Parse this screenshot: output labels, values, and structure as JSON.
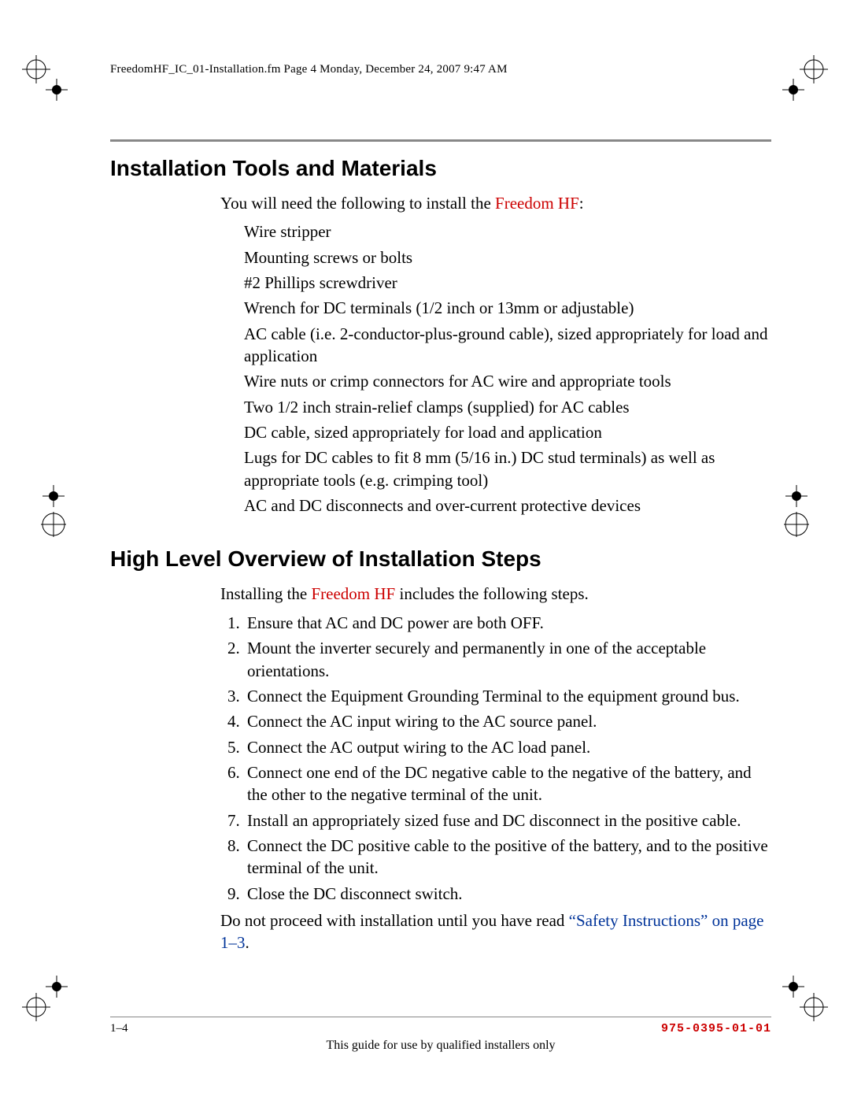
{
  "header": {
    "text": "FreedomHF_IC_01-Installation.fm  Page 4  Monday, December 24, 2007  9:47 AM"
  },
  "section1": {
    "title": "Installation Tools and Materials",
    "intro_prefix": "You will need the following to install the ",
    "intro_product": "Freedom HF",
    "intro_suffix": ":",
    "items": [
      "Wire stripper",
      "Mounting screws or bolts",
      "#2 Phillips screwdriver",
      "Wrench for DC terminals (1/2 inch or 13mm or adjustable)",
      "AC cable (i.e. 2-conductor-plus-ground cable), sized appropriately for load and application",
      "Wire nuts or crimp connectors for AC wire and appropriate tools",
      "Two 1/2 inch strain-relief clamps (supplied) for AC cables",
      "DC cable, sized appropriately for load and application",
      "Lugs for DC cables to fit 8 mm (5/16 in.) DC stud terminals) as well as appropriate tools (e.g. crimping tool)",
      "AC and DC disconnects and over-current protective devices"
    ]
  },
  "section2": {
    "title": "High Level Overview of Installation Steps",
    "intro_prefix": "Installing the ",
    "intro_product": "Freedom HF",
    "intro_suffix": " includes the following steps.",
    "steps": [
      "Ensure that AC and DC power are both OFF.",
      "Mount the inverter securely and permanently in one of the acceptable orientations.",
      "Connect the Equipment Grounding Terminal to the equipment ground bus.",
      "Connect the AC input wiring to the AC source panel.",
      "Connect the AC output wiring to the AC load panel.",
      "Connect one end of the DC negative cable to the negative of the battery, and the other to the negative terminal of the unit.",
      "Install an appropriately sized fuse and DC disconnect in the positive cable.",
      "Connect the DC positive cable to the positive of the battery, and to the positive terminal of the unit.",
      "Close the DC disconnect switch."
    ],
    "warning_prefix": "Do not proceed with installation until you have read ",
    "warning_link": "“Safety Instructions” on page 1–3",
    "warning_suffix": "."
  },
  "footer": {
    "page": "1–4",
    "docnum": "975-0395-01-01",
    "note": "This guide for use by qualified installers only"
  },
  "style": {
    "red": "#cc0000",
    "blue": "#003399"
  }
}
